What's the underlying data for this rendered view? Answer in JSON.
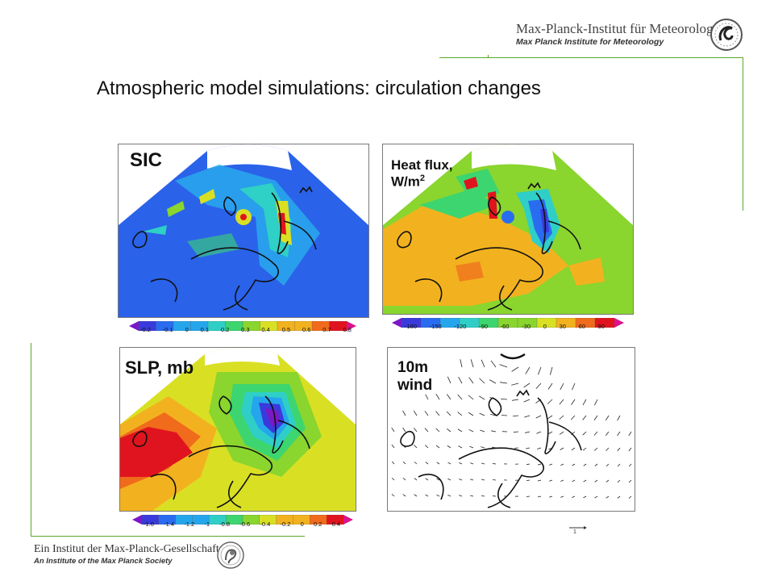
{
  "header": {
    "institute": "Max-Planck-Institut für Meteorologie",
    "institute_en": "Max Planck Institute for Meteorology"
  },
  "title": "Atmospheric model simulations: circulation changes",
  "panels": {
    "sic": {
      "label": "SIC",
      "colorbar_ticks": [
        "-0.2",
        "-0.1",
        "0",
        "0.1",
        "0.2",
        "0.3",
        "0.4",
        "0.5",
        "0.6",
        "0.7",
        "0.8"
      ]
    },
    "heat_flux": {
      "label_line1": "Heat flux,",
      "label_line2": "W/m",
      "label_sup": "2",
      "colorbar_ticks": [
        "-180",
        "-150",
        "-120",
        "-90",
        "-60",
        "-30",
        "0",
        "30",
        "60",
        "90"
      ]
    },
    "slp": {
      "label": "SLP, mb",
      "colorbar_ticks": [
        "-1.6",
        "-1.4",
        "-1.2",
        "-1",
        "-0.8",
        "-0.6",
        "-0.4",
        "-0.2",
        "0",
        "0.2",
        "0.4"
      ]
    },
    "wind": {
      "label_line1": "10m",
      "label_line2": "wind",
      "ref_vector_label": "1"
    }
  },
  "footer": {
    "institute": "Ein Institut der Max-Planck-Gesellschaft",
    "institute_en": "An Institute of the Max Planck Society"
  },
  "colors": {
    "frame_green": "#5aa829",
    "colorbar": [
      "#7a18c8",
      "#3a3adc",
      "#2a6cf0",
      "#25a6ec",
      "#2fcfc8",
      "#3dd56f",
      "#8ad52e",
      "#d9e024",
      "#f2b21f",
      "#f06b1c",
      "#e0141e",
      "#d8148c"
    ]
  }
}
